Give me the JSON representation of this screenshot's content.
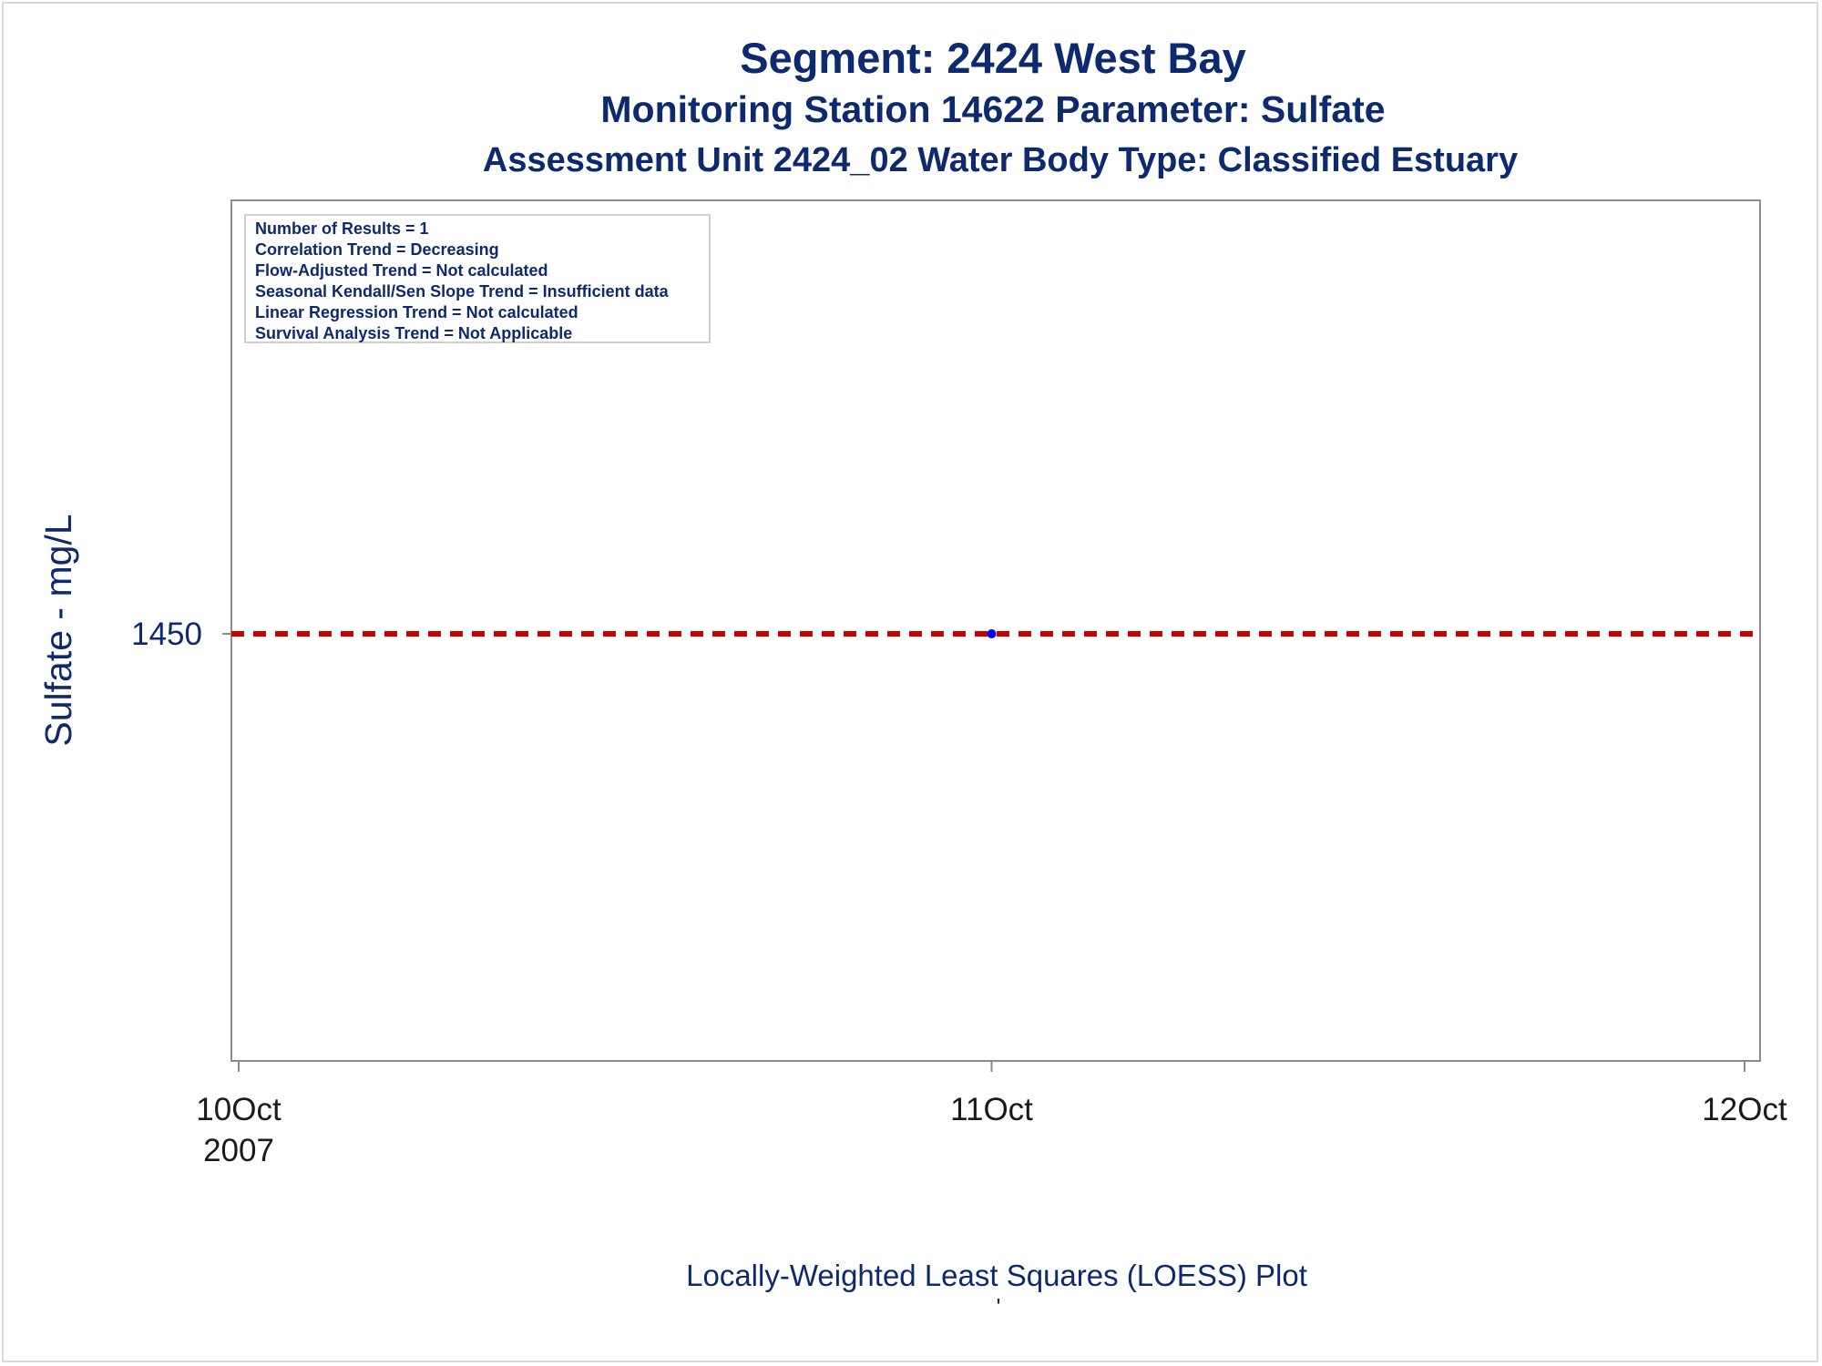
{
  "titles": {
    "line1": "Segment: 2424  West Bay",
    "line2": "Monitoring Station 14622 Parameter: Sulfate",
    "line3": "Assessment Unit 2424_02   Water Body Type: Classified Estuary"
  },
  "stats": [
    "Number of Results = 1",
    "Correlation Trend = Decreasing",
    "Flow-Adjusted Trend = Not calculated",
    "Seasonal Kendall/Sen Slope Trend = Insufficient data",
    "Linear Regression Trend = Not calculated",
    "Survival Analysis Trend = Not Applicable"
  ],
  "footer": {
    "caption": "Locally-Weighted Least Squares (LOESS) Plot",
    "mark": "'"
  },
  "colors": {
    "text": "#0d2a6e",
    "point": "#0000ff",
    "trend_line": "#cc0000",
    "axis": "#8c8c8c"
  },
  "chart_data": {
    "type": "scatter",
    "title": "Segment: 2424  West Bay",
    "ylabel": "Sulfate - mg/L",
    "xlabel": "",
    "x_ticks": [
      {
        "date": "2007-10-10",
        "label": [
          "10Oct",
          "2007"
        ]
      },
      {
        "date": "2007-10-11",
        "label": [
          "11Oct"
        ]
      },
      {
        "date": "2007-10-12",
        "label": [
          "12Oct"
        ]
      }
    ],
    "xlim": [
      "2007-10-10",
      "2007-10-12"
    ],
    "y_ticks": [
      1450
    ],
    "points": [
      {
        "x": "2007-10-11",
        "y": 1450
      }
    ],
    "trend_line": {
      "style": "dashed",
      "y": 1450
    },
    "grid": false,
    "legend": "none"
  }
}
